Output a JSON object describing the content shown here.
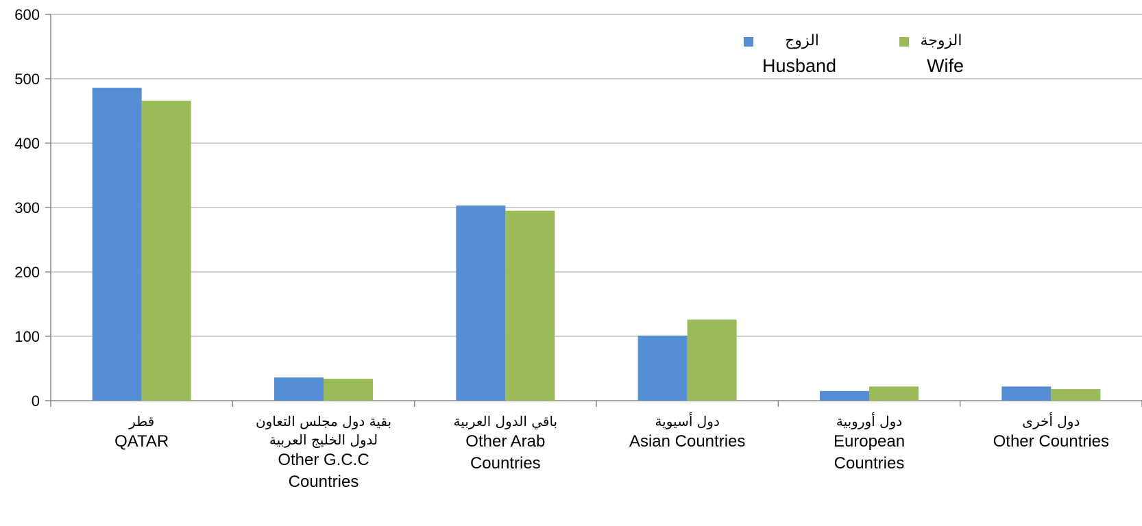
{
  "chart_data": {
    "type": "bar",
    "categories": [
      {
        "ar": "قطر",
        "en": [
          "QATAR"
        ]
      },
      {
        "ar": [
          "بقية دول مجلس التعاون",
          "لدول الخليج العربية"
        ],
        "en": [
          "Other G.C.C",
          "Countries"
        ]
      },
      {
        "ar": "باقي الدول العربية",
        "en": [
          "Other Arab",
          "Countries"
        ]
      },
      {
        "ar": "دول أسيوية",
        "en": [
          "Asian Countries"
        ]
      },
      {
        "ar": "دول أوروبية",
        "en": [
          "European",
          "Countries"
        ]
      },
      {
        "ar": "دول أخرى",
        "en": [
          "Other Countries"
        ]
      }
    ],
    "series": [
      {
        "name_ar": "الزوج",
        "name_en": "Husband",
        "color": "#558ED5",
        "values": [
          486,
          36,
          303,
          101,
          15,
          22
        ]
      },
      {
        "name_ar": "الزوجة",
        "name_en": "Wife",
        "color": "#9BBB59",
        "values": [
          466,
          34,
          295,
          126,
          22,
          18
        ]
      }
    ],
    "ylim": [
      0,
      600
    ],
    "yticks": [
      0,
      100,
      200,
      300,
      400,
      500,
      600
    ],
    "grid": true,
    "legend_position": "top-right"
  }
}
